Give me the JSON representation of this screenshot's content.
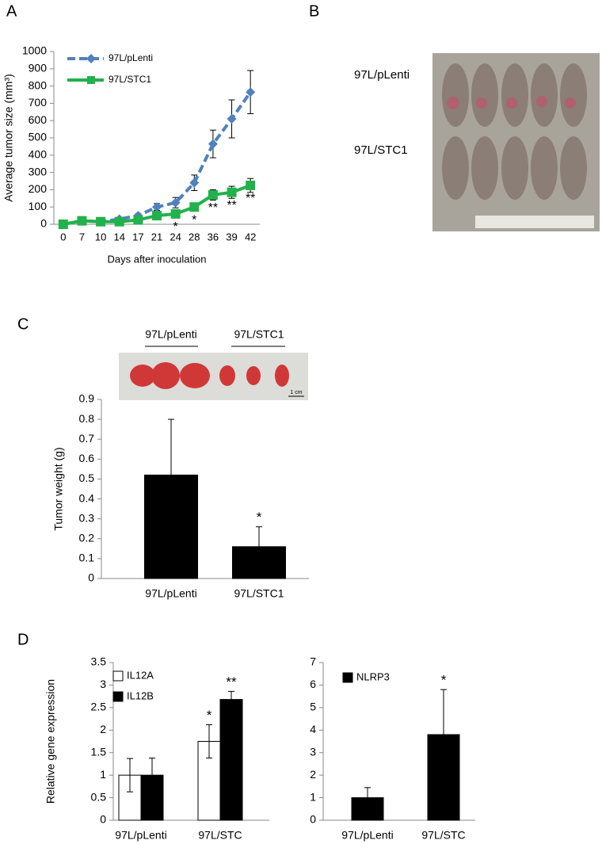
{
  "panel_labels": [
    "A",
    "B",
    "C",
    "D"
  ],
  "photo_b": {
    "labels": [
      "97L/pLenti",
      "97L/STC1"
    ]
  },
  "photo_c": {
    "labels": [
      "97L/pLenti",
      "97L/STC1"
    ],
    "scale": "1 cm"
  },
  "chart_data": [
    {
      "type": "line",
      "ylabel": "Average tumor size (mm³)",
      "xlabel": "Days after inoculation",
      "categories": [
        "0",
        "7",
        "10",
        "14",
        "17",
        "21",
        "24",
        "28",
        "36",
        "39",
        "42"
      ],
      "ylim": [
        0,
        1000
      ],
      "yticks": [
        0,
        100,
        200,
        300,
        400,
        500,
        600,
        700,
        800,
        900,
        1000
      ],
      "legend": "top-left",
      "series": [
        {
          "name": "97L/pLenti",
          "color": "#4f81bd",
          "dashed": true,
          "marker": "diamond",
          "values": [
            0,
            20,
            15,
            30,
            50,
            100,
            125,
            240,
            465,
            610,
            765
          ],
          "errors": [
            0,
            10,
            10,
            10,
            10,
            20,
            30,
            45,
            80,
            110,
            125
          ]
        },
        {
          "name": "97L/STC1",
          "color": "#22b14c",
          "dashed": false,
          "marker": "square",
          "values": [
            0,
            20,
            15,
            15,
            25,
            50,
            60,
            100,
            170,
            185,
            225
          ],
          "errors": [
            0,
            10,
            10,
            10,
            10,
            15,
            20,
            15,
            30,
            35,
            40
          ],
          "significance": [
            null,
            null,
            null,
            null,
            null,
            null,
            "*",
            "*",
            "**",
            "**",
            "**"
          ]
        }
      ]
    },
    {
      "type": "bar",
      "ylabel": "Tumor weight (g)",
      "categories": [
        "97L/pLenti",
        "97L/STC1"
      ],
      "values": [
        0.52,
        0.16
      ],
      "errors": [
        0.28,
        0.1
      ],
      "significance": [
        null,
        "*"
      ],
      "color": "#000000",
      "ylim": [
        0,
        0.9
      ],
      "yticks": [
        0,
        0.1,
        0.2,
        0.3,
        0.4,
        0.5,
        0.6,
        0.7,
        0.8,
        0.9
      ]
    },
    {
      "type": "bar",
      "ylabel": "Relative gene expression",
      "categories": [
        "97L/pLenti",
        "97L/STC"
      ],
      "ylim": [
        0,
        3.5
      ],
      "yticks": [
        0,
        0.5,
        1,
        1.5,
        2,
        2.5,
        3,
        3.5
      ],
      "legend": "top-left",
      "series": [
        {
          "name": "IL12A",
          "color": "#ffffff",
          "values": [
            1,
            1.75
          ],
          "errors": [
            0.37,
            0.37
          ],
          "significance": [
            null,
            "*"
          ]
        },
        {
          "name": "IL12B",
          "color": "#000000",
          "values": [
            1,
            2.68
          ],
          "errors": [
            0.38,
            0.18
          ],
          "significance": [
            null,
            "**"
          ]
        }
      ]
    },
    {
      "type": "bar",
      "categories": [
        "97L/pLenti",
        "97L/STC"
      ],
      "ylim": [
        0,
        7
      ],
      "yticks": [
        0,
        1,
        2,
        3,
        4,
        5,
        6,
        7
      ],
      "legend": "top-left",
      "series": [
        {
          "name": "NLRP3",
          "color": "#000000",
          "values": [
            1,
            3.8
          ],
          "errors": [
            0.45,
            2.0
          ],
          "significance": [
            null,
            "*"
          ]
        }
      ]
    }
  ]
}
